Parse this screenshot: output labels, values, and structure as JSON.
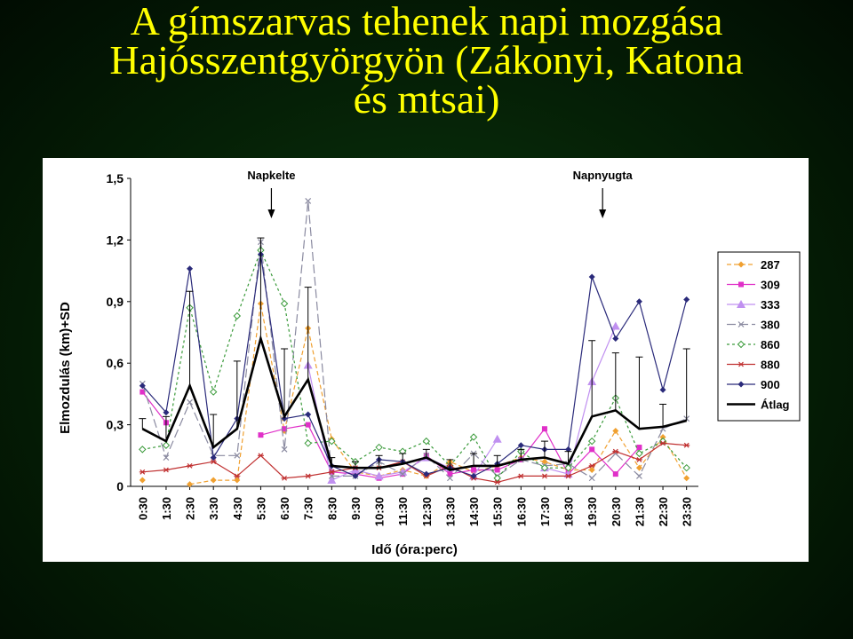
{
  "slide": {
    "title_lines": [
      "A gímszarvas tehenek napi mozgása",
      "Hajósszentgyörgyön (Zákonyi, Katona",
      "és mtsai)"
    ]
  },
  "chart_data": {
    "type": "line",
    "xlabel": "Idő (óra:perc)",
    "ylabel": "Elmozdulás (km)+SD",
    "yticks": [
      "0",
      "0,3",
      "0,6",
      "0,9",
      "1,2",
      "1,5"
    ],
    "ylim": [
      0,
      1.5
    ],
    "categories": [
      "0:30",
      "1:30",
      "2:30",
      "3:30",
      "4:30",
      "5:30",
      "6:30",
      "7:30",
      "8:30",
      "9:30",
      "10:30",
      "11:30",
      "12:30",
      "13:30",
      "14:30",
      "15:30",
      "16:30",
      "17:30",
      "18:30",
      "19:30",
      "20:30",
      "21:30",
      "22:30",
      "23:30"
    ],
    "annotations": [
      {
        "label": "Napkelte",
        "x_index": 5
      },
      {
        "label": "Napnyugta",
        "x_index": 19
      }
    ],
    "legend_position": "right",
    "series": [
      {
        "name": "287",
        "color": "#f0a030",
        "marker": "diamond",
        "dash": "5,3",
        "values": [
          0.03,
          null,
          0.01,
          0.03,
          0.03,
          0.89,
          0.27,
          0.77,
          0.23,
          0.07,
          0.05,
          0.08,
          0.05,
          0.12,
          0.07,
          0.1,
          0.14,
          0.12,
          0.08,
          0.08,
          0.27,
          0.09,
          0.24,
          0.04
        ]
      },
      {
        "name": "309",
        "color": "#e030c8",
        "marker": "square",
        "dash": "",
        "values": [
          0.46,
          0.31,
          null,
          null,
          null,
          0.25,
          0.28,
          0.3,
          0.07,
          0.06,
          0.04,
          0.06,
          0.15,
          0.06,
          0.08,
          0.08,
          0.13,
          0.28,
          0.06,
          0.18,
          0.06,
          0.19,
          null,
          null
        ]
      },
      {
        "name": "333",
        "color": "#c090f0",
        "marker": "triangle",
        "dash": "",
        "values": [
          null,
          null,
          null,
          null,
          null,
          null,
          null,
          0.59,
          0.03,
          0.08,
          0.05,
          0.07,
          0.14,
          0.09,
          0.05,
          0.23,
          null,
          0.09,
          0.06,
          0.51,
          0.78,
          null,
          null,
          null
        ]
      },
      {
        "name": "380",
        "color": "#8a8aa0",
        "marker": "x",
        "dash": "10,4",
        "values": [
          0.5,
          0.14,
          0.41,
          0.15,
          0.15,
          1.19,
          0.18,
          1.39,
          0.05,
          0.05,
          0.12,
          0.06,
          0.15,
          0.04,
          0.16,
          0.05,
          0.13,
          0.1,
          0.11,
          0.04,
          0.16,
          0.05,
          0.28,
          0.33
        ]
      },
      {
        "name": "860",
        "color": "#3a9a3a",
        "marker": "diamond-open",
        "dash": "3,3",
        "values": [
          0.18,
          0.2,
          0.87,
          0.46,
          0.83,
          1.15,
          0.89,
          0.21,
          0.22,
          0.12,
          0.19,
          0.17,
          0.22,
          0.1,
          0.24,
          0.04,
          0.17,
          0.09,
          0.09,
          0.22,
          0.43,
          0.16,
          0.22,
          0.09
        ]
      },
      {
        "name": "880",
        "color": "#c03030",
        "marker": "star",
        "dash": "",
        "values": [
          0.07,
          0.08,
          0.1,
          0.12,
          0.05,
          0.15,
          0.04,
          0.05,
          0.07,
          0.09,
          0.09,
          0.12,
          0.05,
          0.1,
          0.04,
          0.02,
          0.05,
          0.05,
          0.05,
          0.1,
          0.17,
          0.13,
          0.21,
          0.2
        ]
      },
      {
        "name": "900",
        "color": "#2a2a7a",
        "marker": "diamond",
        "dash": "",
        "values": [
          0.49,
          0.36,
          1.06,
          0.14,
          0.33,
          1.13,
          0.33,
          0.35,
          0.1,
          0.05,
          0.13,
          0.12,
          0.06,
          0.09,
          0.05,
          0.11,
          0.2,
          0.18,
          0.18,
          1.02,
          0.72,
          0.9,
          0.47,
          0.91
        ]
      },
      {
        "name": "Átlag",
        "color": "#000000",
        "marker": "none",
        "dash": "",
        "bold": true,
        "values": [
          0.28,
          0.22,
          0.49,
          0.19,
          0.28,
          0.72,
          0.34,
          0.52,
          0.1,
          0.09,
          0.09,
          0.11,
          0.14,
          0.08,
          0.1,
          0.1,
          0.13,
          0.14,
          0.11,
          0.34,
          0.37,
          0.28,
          0.29,
          0.32
        ],
        "error_plus": [
          0.05,
          0.12,
          0.46,
          0.16,
          0.33,
          0.49,
          0.33,
          0.45,
          0.04,
          0.03,
          0.06,
          0.05,
          0.04,
          0.05,
          0.06,
          0.05,
          0.05,
          0.08,
          0.06,
          0.37,
          0.28,
          0.35,
          0.11,
          0.35
        ]
      }
    ]
  }
}
